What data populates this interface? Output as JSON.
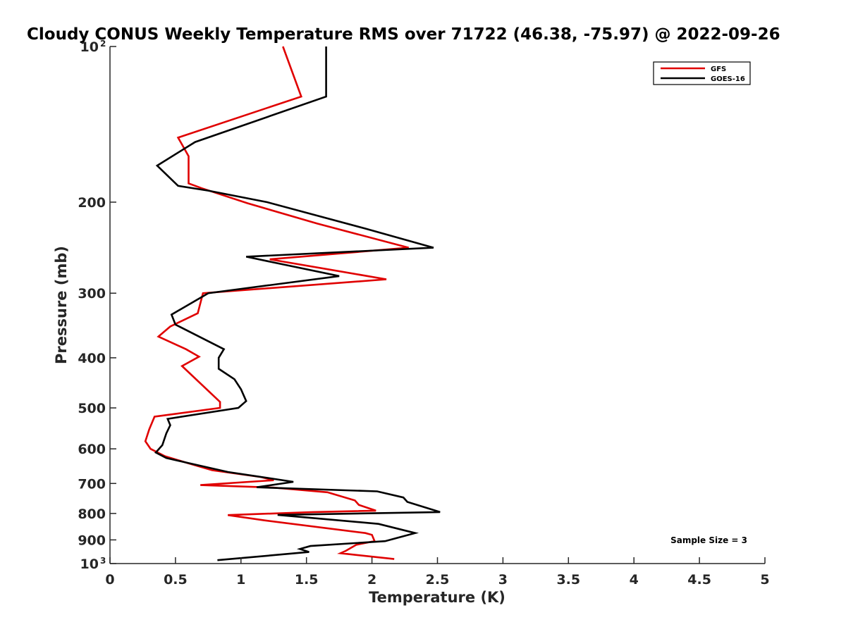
{
  "chart_data": {
    "type": "line",
    "title": "Cloudy CONUS Weekly Temperature RMS over 71722 (46.38, -75.97) @ 2022-09-26",
    "xlabel": "Temperature (K)",
    "ylabel": "Pressure (mb)",
    "xlim": [
      0,
      5
    ],
    "ylim": [
      100,
      1000
    ],
    "y_scale": "log",
    "y_reversed": true,
    "grid": false,
    "legend_position": "top-right",
    "x_ticks": [
      {
        "value": 0,
        "label": "0"
      },
      {
        "value": 0.5,
        "label": "0.5"
      },
      {
        "value": 1,
        "label": "1"
      },
      {
        "value": 1.5,
        "label": "1.5"
      },
      {
        "value": 2,
        "label": "2"
      },
      {
        "value": 2.5,
        "label": "2.5"
      },
      {
        "value": 3,
        "label": "3"
      },
      {
        "value": 3.5,
        "label": "3.5"
      },
      {
        "value": 4,
        "label": "4"
      },
      {
        "value": 4.5,
        "label": "4.5"
      },
      {
        "value": 5,
        "label": "5"
      }
    ],
    "y_ticks": [
      {
        "value": 100,
        "label": "10",
        "exp": "2"
      },
      {
        "value": 200,
        "label": "200"
      },
      {
        "value": 300,
        "label": "300"
      },
      {
        "value": 400,
        "label": "400"
      },
      {
        "value": 500,
        "label": "500"
      },
      {
        "value": 600,
        "label": "600"
      },
      {
        "value": 700,
        "label": "700"
      },
      {
        "value": 800,
        "label": "800"
      },
      {
        "value": 900,
        "label": "900"
      },
      {
        "value": 1000,
        "label": "10",
        "exp": "3"
      }
    ],
    "annotation": "Sample Size = 3",
    "series": [
      {
        "name": "GFS",
        "color": "#e00000",
        "points": [
          [
            1.32,
            100
          ],
          [
            1.46,
            125
          ],
          [
            0.52,
            150
          ],
          [
            0.6,
            163
          ],
          [
            0.6,
            184
          ],
          [
            0.7,
            188
          ],
          [
            1.05,
            201
          ],
          [
            1.58,
            220
          ],
          [
            2.28,
            245
          ],
          [
            1.22,
            258
          ],
          [
            2.11,
            282
          ],
          [
            0.71,
            300
          ],
          [
            0.67,
            328
          ],
          [
            0.46,
            348
          ],
          [
            0.37,
            364
          ],
          [
            0.58,
            385
          ],
          [
            0.68,
            398
          ],
          [
            0.55,
            415
          ],
          [
            0.84,
            487
          ],
          [
            0.84,
            500
          ],
          [
            0.34,
            520
          ],
          [
            0.3,
            550
          ],
          [
            0.27,
            580
          ],
          [
            0.31,
            600
          ],
          [
            0.42,
            620
          ],
          [
            0.6,
            640
          ],
          [
            0.78,
            660
          ],
          [
            1.15,
            680
          ],
          [
            1.25,
            690
          ],
          [
            0.69,
            705
          ],
          [
            1.25,
            713
          ],
          [
            1.66,
            728
          ],
          [
            1.87,
            755
          ],
          [
            1.9,
            770
          ],
          [
            2.03,
            790
          ],
          [
            1.55,
            795
          ],
          [
            0.9,
            806
          ],
          [
            1.18,
            825
          ],
          [
            1.95,
            873
          ],
          [
            2.0,
            880
          ],
          [
            2.02,
            905
          ],
          [
            1.88,
            920
          ],
          [
            1.8,
            945
          ],
          [
            1.76,
            955
          ],
          [
            2.17,
            980
          ]
        ]
      },
      {
        "name": "GOES-16",
        "color": "#000000",
        "points": [
          [
            1.65,
            100
          ],
          [
            1.65,
            125
          ],
          [
            0.65,
            153
          ],
          [
            0.36,
            170
          ],
          [
            0.52,
            186
          ],
          [
            0.75,
            190
          ],
          [
            1.2,
            200
          ],
          [
            1.95,
            225
          ],
          [
            2.47,
            245
          ],
          [
            1.04,
            255
          ],
          [
            1.75,
            278
          ],
          [
            0.75,
            300
          ],
          [
            0.47,
            330
          ],
          [
            0.5,
            345
          ],
          [
            0.87,
            385
          ],
          [
            0.83,
            400
          ],
          [
            0.83,
            420
          ],
          [
            0.95,
            440
          ],
          [
            1.0,
            460
          ],
          [
            1.04,
            485
          ],
          [
            0.98,
            500
          ],
          [
            0.44,
            525
          ],
          [
            0.46,
            540
          ],
          [
            0.43,
            560
          ],
          [
            0.4,
            590
          ],
          [
            0.35,
            610
          ],
          [
            0.43,
            625
          ],
          [
            0.9,
            665
          ],
          [
            1.4,
            695
          ],
          [
            1.12,
            712
          ],
          [
            2.04,
            725
          ],
          [
            2.24,
            745
          ],
          [
            2.27,
            760
          ],
          [
            2.52,
            795
          ],
          [
            1.28,
            805
          ],
          [
            2.05,
            838
          ],
          [
            2.33,
            873
          ],
          [
            2.1,
            905
          ],
          [
            1.53,
            925
          ],
          [
            1.45,
            937
          ],
          [
            1.52,
            950
          ],
          [
            0.82,
            985
          ]
        ]
      }
    ]
  }
}
